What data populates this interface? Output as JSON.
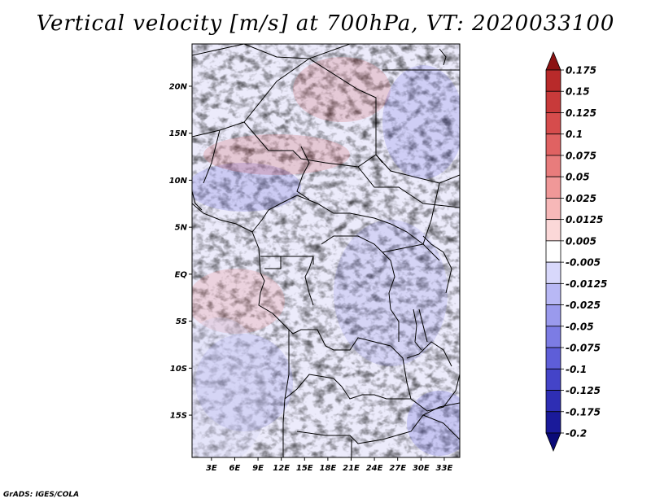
{
  "title": "Vertical velocity [m/s] at 700hPa, VT: 2020033100",
  "credit": "GrADS: IGES/COLA",
  "map": {
    "lat_labels": [
      "20N",
      "15N",
      "10N",
      "5N",
      "EQ",
      "5S",
      "10S",
      "15S"
    ],
    "lat_values": [
      20,
      15,
      10,
      5,
      0,
      -5,
      -10,
      -15
    ],
    "lon_labels": [
      "3E",
      "6E",
      "9E",
      "12E",
      "15E",
      "18E",
      "21E",
      "24E",
      "27E",
      "30E",
      "33E"
    ],
    "lon_values": [
      3,
      6,
      9,
      12,
      15,
      18,
      21,
      24,
      27,
      30,
      33
    ],
    "lon_range": [
      0.5,
      35
    ],
    "lat_range": [
      -19.5,
      24.5
    ]
  },
  "colorbar": {
    "levels": [
      "0.175",
      "0.15",
      "0.125",
      "0.1",
      "0.075",
      "0.05",
      "0.025",
      "0.0125",
      "0.005",
      "-0.005",
      "-0.0125",
      "-0.025",
      "-0.05",
      "-0.075",
      "-0.1",
      "-0.125",
      "-0.175",
      "-0.2"
    ],
    "colors": [
      "#a01c1c",
      "#b82a2a",
      "#c83a3a",
      "#d64c4c",
      "#e06262",
      "#e87c7c",
      "#f09898",
      "#f7b8b8",
      "#fbd8d8",
      "#ffffff",
      "#d8d8fb",
      "#b8b8f5",
      "#9a9aed",
      "#7c7ce4",
      "#5e5ed8",
      "#4444c8",
      "#2e2eb4",
      "#1a1a9a",
      "#0c0c82"
    ],
    "top_color": "#8c1212",
    "bottom_color": "#0a0a78"
  }
}
